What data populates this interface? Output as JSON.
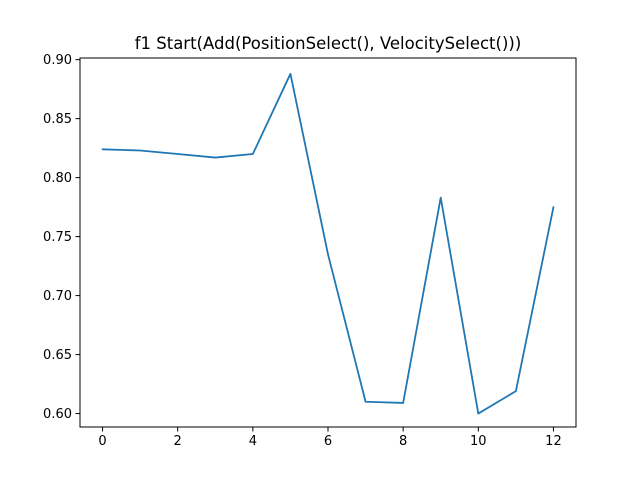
{
  "chart_data": {
    "type": "line",
    "title": "f1 Start(Add(PositionSelect(), VelocitySelect()))",
    "xlabel": "",
    "ylabel": "",
    "x": [
      0,
      1,
      2,
      3,
      4,
      5,
      6,
      7,
      8,
      9,
      10,
      11,
      12
    ],
    "series": [
      {
        "color": "#1f77b4",
        "values": [
          0.824,
          0.823,
          0.82,
          0.817,
          0.82,
          0.888,
          0.735,
          0.61,
          0.609,
          0.783,
          0.6,
          0.619,
          0.775
        ]
      }
    ],
    "xlim": [
      -0.6,
      12.6
    ],
    "ylim": [
      0.5886,
      0.9014
    ],
    "xticks": [
      0,
      2,
      4,
      6,
      8,
      10,
      12
    ],
    "xtick_labels": [
      "0",
      "2",
      "4",
      "6",
      "8",
      "10",
      "12"
    ],
    "yticks": [
      0.6,
      0.65,
      0.7,
      0.75,
      0.8,
      0.85,
      0.9
    ],
    "ytick_labels": [
      "0.60",
      "0.65",
      "0.70",
      "0.75",
      "0.80",
      "0.85",
      "0.90"
    ],
    "grid": false,
    "legend": "none"
  }
}
